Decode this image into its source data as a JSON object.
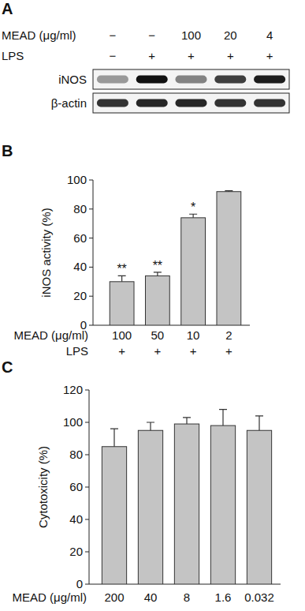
{
  "chart_data": [
    {
      "type": "blot",
      "title": "A",
      "rows": [
        {
          "label": "MEAD (μg/ml)",
          "values": [
            "−",
            "−",
            "100",
            "20",
            "4"
          ]
        },
        {
          "label": "LPS",
          "values": [
            "−",
            "+",
            "+",
            "+",
            "+"
          ]
        }
      ],
      "bands": [
        {
          "name": "iNOS",
          "values": [
            0.4,
            1,
            0.5,
            0.8,
            0.95
          ]
        },
        {
          "name": "β-actin",
          "values": [
            0.85,
            0.9,
            0.9,
            0.85,
            0.85
          ]
        }
      ]
    },
    {
      "type": "bar",
      "title": "B",
      "y_label": "iNOS activity (%)",
      "x_label": "MEAD (μg/ml)",
      "categories": [
        "100",
        "50",
        "10",
        "2"
      ],
      "values": [
        30,
        34,
        74,
        92
      ],
      "errors": [
        4,
        2.5,
        2.5,
        0.6
      ],
      "annotations": [
        "**",
        "**",
        "*",
        null
      ],
      "rows": [
        {
          "label": "LPS",
          "values": [
            "+",
            "+",
            "+",
            "+"
          ]
        }
      ],
      "color": "#c4c4c4",
      "ylim": [
        0,
        100
      ],
      "yticks": [
        0,
        20,
        40,
        60,
        80,
        100
      ]
    },
    {
      "type": "bar",
      "title": "C",
      "y_label": "Cytotoxicity (%)",
      "x_label": "MEAD (μg/ml)",
      "categories": [
        "200",
        "40",
        "8",
        "1.6",
        "0.032"
      ],
      "values": [
        85,
        95,
        99,
        98,
        95
      ],
      "errors": [
        11,
        5,
        4,
        10,
        9
      ],
      "color": "#c4c4c4",
      "ylim": [
        0,
        120
      ],
      "yticks": [
        0,
        20,
        40,
        60,
        80,
        100,
        120
      ]
    }
  ]
}
